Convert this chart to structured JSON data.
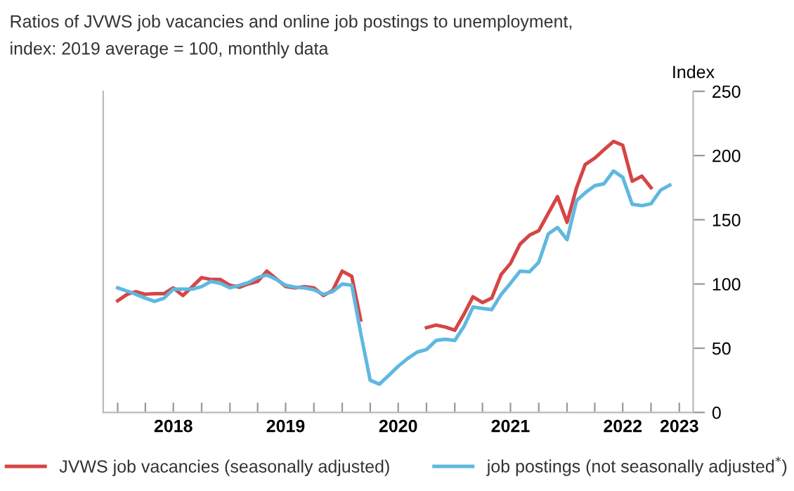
{
  "chart_data": {
    "type": "line",
    "title": "Ratios of JVWS job vacancies and online job postings to unemployment,",
    "subtitle": "index: 2019 average = 100, monthly data",
    "ylabel": "Index",
    "x": [
      "2018-01",
      "2018-02",
      "2018-03",
      "2018-04",
      "2018-05",
      "2018-06",
      "2018-07",
      "2018-08",
      "2018-09",
      "2018-10",
      "2018-11",
      "2018-12",
      "2019-01",
      "2019-02",
      "2019-03",
      "2019-04",
      "2019-05",
      "2019-06",
      "2019-07",
      "2019-08",
      "2019-09",
      "2019-10",
      "2019-11",
      "2019-12",
      "2020-01",
      "2020-02",
      "2020-03",
      "2020-04",
      "2020-05",
      "2020-06",
      "2020-07",
      "2020-08",
      "2020-09",
      "2020-10",
      "2020-11",
      "2020-12",
      "2021-01",
      "2021-02",
      "2021-03",
      "2021-04",
      "2021-05",
      "2021-06",
      "2021-07",
      "2021-08",
      "2021-09",
      "2021-10",
      "2021-11",
      "2021-12",
      "2022-01",
      "2022-02",
      "2022-03",
      "2022-04",
      "2022-05",
      "2022-06",
      "2022-07",
      "2022-08",
      "2022-09",
      "2022-10",
      "2022-11",
      "2022-12"
    ],
    "series": [
      {
        "name": "JVWS job vacancies (seasonally adjusted)",
        "color": "#d64545",
        "values": [
          87,
          92,
          94,
          92,
          92.5,
          92.5,
          97,
          91,
          98,
          105,
          103.5,
          103.5,
          99,
          97.5,
          100,
          102,
          110,
          104,
          98,
          97,
          98,
          97,
          91,
          95,
          110,
          106,
          72,
          null,
          null,
          null,
          null,
          null,
          null,
          66,
          68,
          66.5,
          64,
          77,
          90,
          85.5,
          89,
          107.5,
          116,
          131,
          138,
          141.5,
          155,
          168,
          148,
          175,
          193,
          198,
          204.5,
          211,
          208,
          180,
          184,
          175,
          null,
          null
        ]
      },
      {
        "name": "job postings (not seasonally adjusted$^{*}$)",
        "color": "#5fb8e0",
        "values": [
          97,
          94.5,
          92,
          89,
          86.5,
          89,
          96,
          96,
          96,
          98,
          102,
          100.5,
          97,
          99,
          101,
          105,
          107,
          103.5,
          99,
          97.5,
          97,
          95.5,
          92,
          94,
          100,
          99,
          62,
          25,
          22,
          29,
          36,
          42,
          47,
          49,
          56,
          57,
          56,
          67.5,
          82,
          81,
          80,
          92,
          100.5,
          110,
          109.5,
          117,
          139,
          144,
          134.5,
          165,
          171,
          176.5,
          178,
          188,
          183,
          162,
          161,
          162.5,
          173,
          177
        ]
      }
    ],
    "xlim": [
      "2017-11-15",
      "2023-02-15"
    ],
    "xticks": [
      {
        "value": "2018-01-01",
        "label": null
      },
      {
        "value": "2018-04-01",
        "label": null
      },
      {
        "value": "2018-07-01",
        "label": "2018"
      },
      {
        "value": "2018-10-01",
        "label": null
      },
      {
        "value": "2019-01-01",
        "label": null
      },
      {
        "value": "2019-04-01",
        "label": null
      },
      {
        "value": "2019-07-01",
        "label": "2019"
      },
      {
        "value": "2019-10-01",
        "label": null
      },
      {
        "value": "2020-01-01",
        "label": null
      },
      {
        "value": "2020-04-01",
        "label": null
      },
      {
        "value": "2020-07-01",
        "label": "2020"
      },
      {
        "value": "2020-10-01",
        "label": null
      },
      {
        "value": "2021-01-01",
        "label": null
      },
      {
        "value": "2021-04-01",
        "label": null
      },
      {
        "value": "2021-07-01",
        "label": "2021"
      },
      {
        "value": "2021-10-01",
        "label": null
      },
      {
        "value": "2022-01-01",
        "label": null
      },
      {
        "value": "2022-04-01",
        "label": null
      },
      {
        "value": "2022-07-01",
        "label": "2022"
      },
      {
        "value": "2022-10-01",
        "label": null
      },
      {
        "value": "2023-01-01",
        "label": "2023"
      }
    ],
    "ylim": [
      0,
      250
    ],
    "yticks": [
      0,
      50,
      100,
      150,
      200,
      250
    ],
    "grid": false,
    "legend": "bottom",
    "line_style": "solid",
    "marker": "none"
  }
}
